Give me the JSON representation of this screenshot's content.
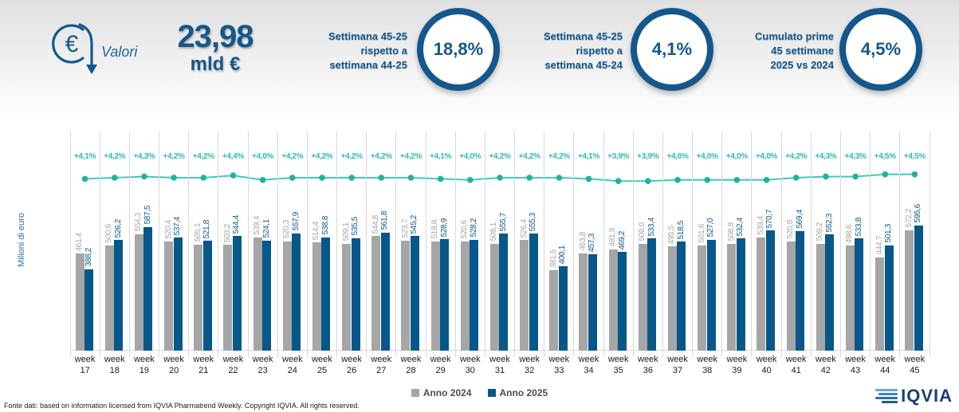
{
  "header": {
    "values_icon_label": "Valori",
    "total_value": "23,98",
    "total_unit": "mld €",
    "kpis": [
      {
        "label_lines": [
          "Settimana 45-25",
          "rispetto a",
          "settimana 44-25"
        ],
        "value": "18,8%"
      },
      {
        "label_lines": [
          "Settimana 45-25",
          "rispetto a",
          "settimana 45-24"
        ],
        "value": "4,1%"
      },
      {
        "label_lines": [
          "Cumulato prime",
          "45 settimane",
          "2025 vs 2024"
        ],
        "value": "4,5%"
      }
    ]
  },
  "chart_data": {
    "type": "bar",
    "ylabel": "Milioni di euro",
    "category_prefix": "week",
    "categories": [
      "17",
      "18",
      "19",
      "20",
      "21",
      "22",
      "23",
      "24",
      "25",
      "26",
      "27",
      "28",
      "29",
      "30",
      "31",
      "32",
      "33",
      "34",
      "35",
      "36",
      "37",
      "38",
      "39",
      "40",
      "41",
      "42",
      "43",
      "44",
      "45"
    ],
    "series": [
      {
        "name": "Anno 2024",
        "color": "#a6a6a6",
        "values": [
          461.4,
          500.6,
          554.3,
          520.4,
          505.1,
          503.2,
          539.4,
          520.3,
          514.4,
          509.1,
          544.8,
          523.7,
          519.8,
          520.6,
          508.1,
          526.4,
          381.5,
          463.8,
          481.9,
          509.0,
          495.5,
          501.6,
          508.8,
          539.4,
          520.8,
          509.2,
          498.6,
          444.7,
          572.2
        ]
      },
      {
        "name": "Anno 2025",
        "color": "#07588a",
        "values": [
          388.2,
          526.2,
          587.5,
          537.4,
          521.8,
          544.4,
          524.1,
          557.9,
          538.8,
          535.5,
          561.8,
          545.2,
          528.9,
          528.2,
          555.7,
          555.3,
          400.1,
          457.3,
          469.2,
          533.4,
          518.5,
          527.0,
          532.4,
          570.7,
          569.4,
          552.3,
          533.8,
          501.3,
          595.6
        ]
      }
    ],
    "pct_line": {
      "color": "#45c8b8",
      "marker_color": "#1cb3a2",
      "labels": [
        "+4,1%",
        "+4,2%",
        "+4,3%",
        "+4,2%",
        "+4,2%",
        "+4,4%",
        "+4,0%",
        "+4,2%",
        "+4,2%",
        "+4,2%",
        "+4,2%",
        "+4,2%",
        "+4,1%",
        "+4,0%",
        "+4,2%",
        "+4,2%",
        "+4,2%",
        "+4,1%",
        "+3,9%",
        "+3,9%",
        "+4,0%",
        "+4,0%",
        "+4,0%",
        "+4,0%",
        "+4,2%",
        "+4,3%",
        "+4,3%",
        "+4,5%",
        "+4,5%"
      ]
    },
    "legend_position": "bottom-center",
    "grid": "vertical category separators",
    "ylim": [
      0,
      1060
    ]
  },
  "footer": {
    "source_text": "Fonte dati: based on information licensed from IQVIA Pharmatrend Weekly. Copyright IQVIA. All rights reserved.",
    "logo_text": "IQVIA"
  }
}
